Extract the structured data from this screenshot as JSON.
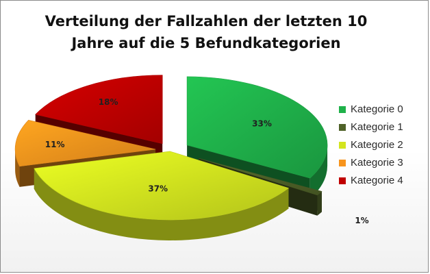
{
  "chart_data": {
    "type": "pie",
    "title_lines": [
      "Verteilung der Fallzahlen der letzten 10",
      "Jahre auf die 5 Befundkategorien"
    ],
    "categories": [
      "Kategorie 0",
      "Kategorie 1",
      "Kategorie 2",
      "Kategorie 3",
      "Kategorie 4"
    ],
    "values": [
      33,
      1,
      37,
      11,
      18
    ],
    "value_labels": [
      "33%",
      "1%",
      "37%",
      "11%",
      "18%"
    ],
    "colors": [
      "#1fb14a",
      "#4f6228",
      "#d3e51f",
      "#f7941d",
      "#c00000"
    ],
    "legend_position": "right",
    "style": "3d-exploded"
  }
}
